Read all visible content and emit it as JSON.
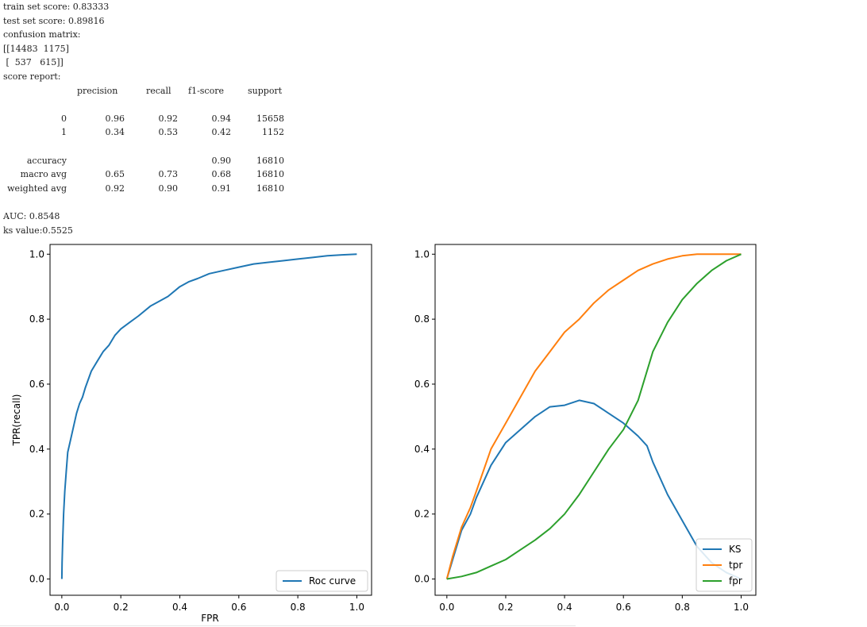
{
  "output": {
    "train_line": "train set score: 0.83333",
    "test_line": "test set score: 0.89816",
    "cm_label": "confusion matrix:",
    "cm_row1": "[[14483  1175]",
    "cm_row2": " [  537   615]]",
    "report_label": "score report:",
    "report_headers": [
      "precision",
      "recall",
      "f1-score",
      "support"
    ],
    "report_rows": [
      {
        "label": "0",
        "precision": "0.96",
        "recall": "0.92",
        "f1": "0.94",
        "support": "15658"
      },
      {
        "label": "1",
        "precision": "0.34",
        "recall": "0.53",
        "f1": "0.42",
        "support": "1152"
      },
      {
        "label": "",
        "precision": "",
        "recall": "",
        "f1": "",
        "support": ""
      },
      {
        "label": "accuracy",
        "precision": "",
        "recall": "",
        "f1": "0.90",
        "support": "16810"
      },
      {
        "label": "macro avg",
        "precision": "0.65",
        "recall": "0.73",
        "f1": "0.68",
        "support": "16810"
      },
      {
        "label": "weighted avg",
        "precision": "0.92",
        "recall": "0.90",
        "f1": "0.91",
        "support": "16810"
      }
    ],
    "auc_line": "AUC: 0.8548",
    "ks_line": "ks value:0.5525"
  },
  "chart_data": [
    {
      "type": "line",
      "title": "",
      "xlabel": "FPR",
      "ylabel": "TPR(recall)",
      "xlim": [
        -0.04,
        1.05
      ],
      "ylim": [
        -0.05,
        1.03
      ],
      "xticks": [
        0.0,
        0.2,
        0.4,
        0.6,
        0.8,
        1.0
      ],
      "yticks": [
        0.0,
        0.2,
        0.4,
        0.6,
        0.8,
        1.0
      ],
      "xtick_labels": [
        "0.0",
        "0.2",
        "0.4",
        "0.6",
        "0.8",
        "1.0"
      ],
      "ytick_labels": [
        "0.0",
        "0.2",
        "0.4",
        "0.6",
        "0.8",
        "1.0"
      ],
      "legend_position": "lower-right",
      "grid": false,
      "series": [
        {
          "name": "Roc curve",
          "color": "#1f77b4",
          "x": [
            0,
            0.001,
            0.003,
            0.006,
            0.01,
            0.015,
            0.02,
            0.03,
            0.04,
            0.05,
            0.06,
            0.07,
            0.08,
            0.1,
            0.12,
            0.14,
            0.16,
            0.18,
            0.2,
            0.23,
            0.26,
            0.3,
            0.33,
            0.36,
            0.4,
            0.43,
            0.46,
            0.5,
            0.55,
            0.6,
            0.65,
            0.7,
            0.75,
            0.8,
            0.85,
            0.9,
            0.95,
            1.0
          ],
          "y": [
            0,
            0.05,
            0.12,
            0.2,
            0.27,
            0.33,
            0.39,
            0.43,
            0.47,
            0.51,
            0.54,
            0.56,
            0.59,
            0.64,
            0.67,
            0.7,
            0.72,
            0.75,
            0.77,
            0.79,
            0.81,
            0.84,
            0.855,
            0.87,
            0.9,
            0.915,
            0.925,
            0.94,
            0.95,
            0.96,
            0.97,
            0.975,
            0.98,
            0.985,
            0.99,
            0.995,
            0.998,
            1.0
          ]
        }
      ]
    },
    {
      "type": "line",
      "title": "",
      "xlabel": "",
      "ylabel": "",
      "xlim": [
        -0.04,
        1.05
      ],
      "ylim": [
        -0.05,
        1.03
      ],
      "xticks": [
        0.0,
        0.2,
        0.4,
        0.6,
        0.8,
        1.0
      ],
      "yticks": [
        0.0,
        0.2,
        0.4,
        0.6,
        0.8,
        1.0
      ],
      "xtick_labels": [
        "0.0",
        "0.2",
        "0.4",
        "0.6",
        "0.8",
        "1.0"
      ],
      "ytick_labels": [
        "0.0",
        "0.2",
        "0.4",
        "0.6",
        "0.8",
        "1.0"
      ],
      "legend_position": "lower-right",
      "grid": false,
      "series": [
        {
          "name": "KS",
          "color": "#1f77b4",
          "x": [
            0,
            0.02,
            0.05,
            0.08,
            0.1,
            0.15,
            0.2,
            0.25,
            0.3,
            0.35,
            0.4,
            0.45,
            0.5,
            0.55,
            0.6,
            0.65,
            0.68,
            0.7,
            0.75,
            0.8,
            0.85,
            0.9,
            0.95,
            1.0
          ],
          "y": [
            0,
            0.06,
            0.15,
            0.2,
            0.25,
            0.35,
            0.42,
            0.46,
            0.5,
            0.53,
            0.535,
            0.55,
            0.54,
            0.51,
            0.48,
            0.44,
            0.41,
            0.36,
            0.26,
            0.18,
            0.1,
            0.05,
            0.02,
            0.0
          ]
        },
        {
          "name": "tpr",
          "color": "#ff7f0e",
          "x": [
            0,
            0.02,
            0.05,
            0.08,
            0.1,
            0.15,
            0.2,
            0.25,
            0.3,
            0.35,
            0.4,
            0.45,
            0.5,
            0.55,
            0.6,
            0.65,
            0.7,
            0.75,
            0.8,
            0.85,
            0.9,
            0.95,
            1.0
          ],
          "y": [
            0,
            0.07,
            0.16,
            0.22,
            0.27,
            0.4,
            0.48,
            0.56,
            0.64,
            0.7,
            0.76,
            0.8,
            0.85,
            0.89,
            0.92,
            0.95,
            0.97,
            0.985,
            0.995,
            1.0,
            1.0,
            1.0,
            1.0
          ]
        },
        {
          "name": "fpr",
          "color": "#2ca02c",
          "x": [
            0,
            0.05,
            0.1,
            0.15,
            0.2,
            0.25,
            0.3,
            0.35,
            0.4,
            0.45,
            0.5,
            0.55,
            0.6,
            0.65,
            0.7,
            0.75,
            0.8,
            0.85,
            0.9,
            0.95,
            1.0
          ],
          "y": [
            0,
            0.008,
            0.02,
            0.04,
            0.06,
            0.09,
            0.12,
            0.155,
            0.2,
            0.26,
            0.33,
            0.4,
            0.46,
            0.55,
            0.7,
            0.79,
            0.86,
            0.91,
            0.95,
            0.98,
            1.0
          ]
        }
      ]
    }
  ]
}
